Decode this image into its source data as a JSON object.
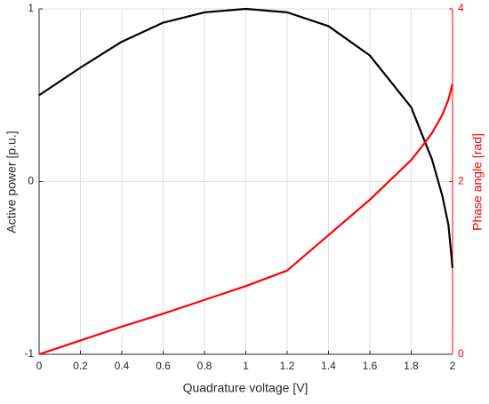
{
  "chart_data": {
    "type": "line",
    "xlabel": "Quadrature voltage [V]",
    "ylabel": "Active power [p.u.]",
    "y2label": "Phase angle [rad]",
    "x": [
      0,
      0.2,
      0.4,
      0.6,
      0.8,
      1.0,
      1.2,
      1.4,
      1.6,
      1.8,
      1.85,
      1.9,
      1.95,
      1.98,
      2.0
    ],
    "series": [
      {
        "name": "Active power",
        "color": "#000000",
        "axis": "y",
        "values": [
          0.5,
          0.66,
          0.81,
          0.92,
          0.98,
          1.0,
          0.98,
          0.9,
          0.73,
          0.43,
          0.28,
          0.13,
          -0.08,
          -0.25,
          -0.5
        ]
      },
      {
        "name": "Phase angle",
        "color": "#ff0000",
        "axis": "y2",
        "values": [
          0,
          0.16,
          0.32,
          0.47,
          0.63,
          0.79,
          0.97,
          1.38,
          1.79,
          2.25,
          2.4,
          2.56,
          2.77,
          2.95,
          3.13
        ]
      }
    ],
    "xlim": [
      0,
      2
    ],
    "xticks": [
      0,
      0.2,
      0.4,
      0.6,
      0.8,
      1,
      1.2,
      1.4,
      1.6,
      1.8,
      2
    ],
    "ylim": [
      -1,
      1
    ],
    "yticks": [
      -1,
      0,
      1
    ],
    "y2lim": [
      0,
      4
    ],
    "y2ticks": [
      0,
      2,
      4
    ],
    "grid": true
  }
}
